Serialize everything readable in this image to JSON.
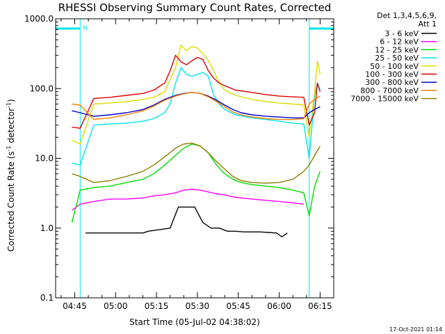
{
  "chart_data": {
    "type": "line",
    "title": "RHESSI Observing Summary Count Rates, Corrected",
    "xlabel": "Start Time (05-Jul-02 04:38:02)",
    "ylabel_main": "Corrected Count Rate (s",
    "ylabel_sup1": "-1",
    "ylabel_mid": " detector",
    "ylabel_sup2": "-1",
    "ylabel_end": ")",
    "yscale": "log",
    "ylim": [
      0.1,
      1000
    ],
    "xlim_min": [
      38,
      140
    ],
    "x_unit": "minutes after 04:00",
    "y_ticks": [
      {
        "v": 1000,
        "label": "1000.0"
      },
      {
        "v": 100,
        "label": "100.0"
      },
      {
        "v": 10,
        "label": "10.0"
      },
      {
        "v": 1,
        "label": "1.0"
      },
      {
        "v": 0.1,
        "label": "0.1"
      }
    ],
    "x_ticks": [
      {
        "v": 45,
        "label": "04:45"
      },
      {
        "v": 60,
        "label": "05:00"
      },
      {
        "v": 75,
        "label": "05:15"
      },
      {
        "v": 90,
        "label": "05:30"
      },
      {
        "v": 105,
        "label": "05:45"
      },
      {
        "v": 120,
        "label": "06:00"
      },
      {
        "v": 135,
        "label": "06:15"
      }
    ],
    "legend_header": [
      "Det 1,3,4,5,6,9,",
      "Att 1"
    ],
    "legend_placement": "right",
    "night_marker": "N",
    "night_intervals": [
      [
        38,
        47
      ],
      [
        131,
        140
      ]
    ],
    "night_color": "#00e5ee",
    "timestamp": "17-Oct-2021 01:14",
    "series": [
      {
        "name": "3 - 6 keV",
        "color": "#000000",
        "x": [
          38,
          47,
          49,
          58,
          70,
          72,
          80,
          83,
          86,
          89,
          92,
          95,
          98,
          101,
          104,
          107,
          110,
          113,
          119,
          121,
          123,
          131
        ],
        "y": [
          null,
          null,
          0.85,
          0.85,
          0.85,
          0.9,
          1.0,
          2.0,
          2.0,
          2.0,
          1.2,
          1.0,
          1.0,
          0.9,
          0.9,
          0.88,
          0.88,
          0.88,
          0.85,
          0.75,
          0.85,
          null
        ]
      },
      {
        "name": "6 - 12 keV",
        "color": "#ff00ff",
        "x": [
          38,
          44,
          47,
          52,
          58,
          64,
          70,
          74,
          78,
          82,
          85,
          88,
          91,
          94,
          97,
          100,
          103,
          106,
          110,
          115,
          120,
          125,
          129,
          131,
          133,
          134
        ],
        "y": [
          null,
          1.8,
          2.2,
          2.4,
          2.6,
          2.6,
          2.7,
          2.9,
          3.0,
          3.2,
          3.5,
          3.6,
          3.5,
          3.3,
          3.1,
          3.0,
          2.8,
          2.7,
          2.6,
          2.5,
          2.4,
          2.3,
          2.2,
          null,
          null,
          null
        ]
      },
      {
        "name": "12 - 25 keV",
        "color": "#00dd00",
        "x": [
          38,
          44,
          47,
          52,
          58,
          64,
          70,
          74,
          78,
          82,
          85,
          88,
          91,
          94,
          97,
          100,
          103,
          106,
          110,
          115,
          120,
          125,
          129,
          131,
          133,
          135
        ],
        "y": [
          null,
          1.2,
          3.5,
          3.8,
          4.0,
          4.5,
          5.0,
          6.0,
          8.0,
          11.0,
          14.0,
          16.0,
          15.0,
          12.0,
          8.0,
          6.0,
          5.0,
          4.5,
          4.2,
          4.0,
          3.8,
          3.5,
          3.2,
          1.5,
          4.0,
          6.5
        ]
      },
      {
        "name": "25 - 50 keV",
        "color": "#00e5ee",
        "x": [
          38,
          44,
          47,
          52,
          58,
          64,
          70,
          74,
          78,
          80,
          82,
          84,
          86,
          88,
          90,
          92,
          94,
          96,
          98,
          100,
          104,
          110,
          115,
          120,
          125,
          129,
          131,
          133,
          134,
          135
        ],
        "y": [
          null,
          8.5,
          8.0,
          30.0,
          31.0,
          32.0,
          34.0,
          37.0,
          45.0,
          60.0,
          120.0,
          200.0,
          160.0,
          150.0,
          160.0,
          170.0,
          150.0,
          80.0,
          60.0,
          50.0,
          42.0,
          38.0,
          36.0,
          34.0,
          32.0,
          31.0,
          10.0,
          80.0,
          120.0,
          95.0
        ]
      },
      {
        "name": "50 - 100 keV",
        "color": "#dddd00",
        "x": [
          38,
          44,
          47,
          52,
          58,
          64,
          70,
          74,
          78,
          82,
          84,
          86,
          88,
          90,
          92,
          94,
          96,
          98,
          100,
          104,
          110,
          115,
          120,
          125,
          129,
          131,
          133,
          134,
          135
        ],
        "y": [
          null,
          18.0,
          16.0,
          60.0,
          62.0,
          65.0,
          70.0,
          75.0,
          90.0,
          200.0,
          420.0,
          350.0,
          400.0,
          380.0,
          320.0,
          250.0,
          180.0,
          120.0,
          95.0,
          80.0,
          70.0,
          65.0,
          62.0,
          60.0,
          58.0,
          20.0,
          90.0,
          250.0,
          160.0
        ]
      },
      {
        "name": "100 - 300 keV",
        "color": "#dd0000",
        "x": [
          38,
          44,
          47,
          52,
          58,
          64,
          70,
          74,
          78,
          80,
          82,
          84,
          86,
          88,
          90,
          92,
          94,
          96,
          98,
          100,
          104,
          110,
          115,
          120,
          125,
          129,
          131,
          133,
          134,
          135
        ],
        "y": [
          null,
          28.0,
          27.0,
          72.0,
          75.0,
          80.0,
          85.0,
          95.0,
          120.0,
          180.0,
          300.0,
          240.0,
          220.0,
          250.0,
          280.0,
          260.0,
          180.0,
          140.0,
          120.0,
          110.0,
          95.0,
          88.0,
          82.0,
          78.0,
          76.0,
          75.0,
          30.0,
          45.0,
          120.0,
          90.0
        ]
      },
      {
        "name": "300 - 800 keV",
        "color": "#0000cc",
        "x": [
          38,
          44,
          47,
          52,
          58,
          64,
          70,
          74,
          78,
          82,
          85,
          88,
          91,
          94,
          97,
          100,
          103,
          106,
          110,
          115,
          120,
          125,
          129,
          131,
          133,
          135
        ],
        "y": [
          null,
          48.0,
          45.0,
          40.0,
          42.0,
          45.0,
          50.0,
          58.0,
          70.0,
          80.0,
          85.0,
          88.0,
          85.0,
          78.0,
          68.0,
          58.0,
          50.0,
          45.0,
          42.0,
          40.0,
          39.0,
          38.0,
          38.0,
          45.0,
          50.0,
          55.0
        ]
      },
      {
        "name": "800 - 7000 keV",
        "color": "#ff7f00",
        "x": [
          38,
          44,
          47,
          52,
          58,
          64,
          70,
          74,
          78,
          82,
          85,
          88,
          91,
          94,
          97,
          100,
          103,
          106,
          110,
          115,
          120,
          125,
          129,
          131,
          133,
          135
        ],
        "y": [
          null,
          60.0,
          58.0,
          36.0,
          38.0,
          42.0,
          48.0,
          56.0,
          68.0,
          78.0,
          84.0,
          88.0,
          85.0,
          76.0,
          65.0,
          55.0,
          46.0,
          42.0,
          39.0,
          37.0,
          36.0,
          36.0,
          37.0,
          60.0,
          70.0,
          78.0
        ]
      },
      {
        "name": "7000 - 15000 keV",
        "color": "#8b8000",
        "x": [
          38,
          44,
          47,
          52,
          58,
          64,
          70,
          74,
          78,
          82,
          85,
          88,
          91,
          94,
          97,
          100,
          103,
          106,
          110,
          115,
          120,
          125,
          129,
          131,
          133,
          135
        ],
        "y": [
          null,
          6.0,
          5.5,
          4.5,
          4.8,
          5.5,
          6.5,
          8.0,
          10.5,
          14.0,
          16.0,
          16.5,
          15.0,
          12.0,
          9.0,
          7.0,
          5.5,
          4.8,
          4.5,
          4.4,
          4.5,
          5.0,
          6.5,
          8.0,
          11.0,
          15.0
        ]
      }
    ]
  }
}
